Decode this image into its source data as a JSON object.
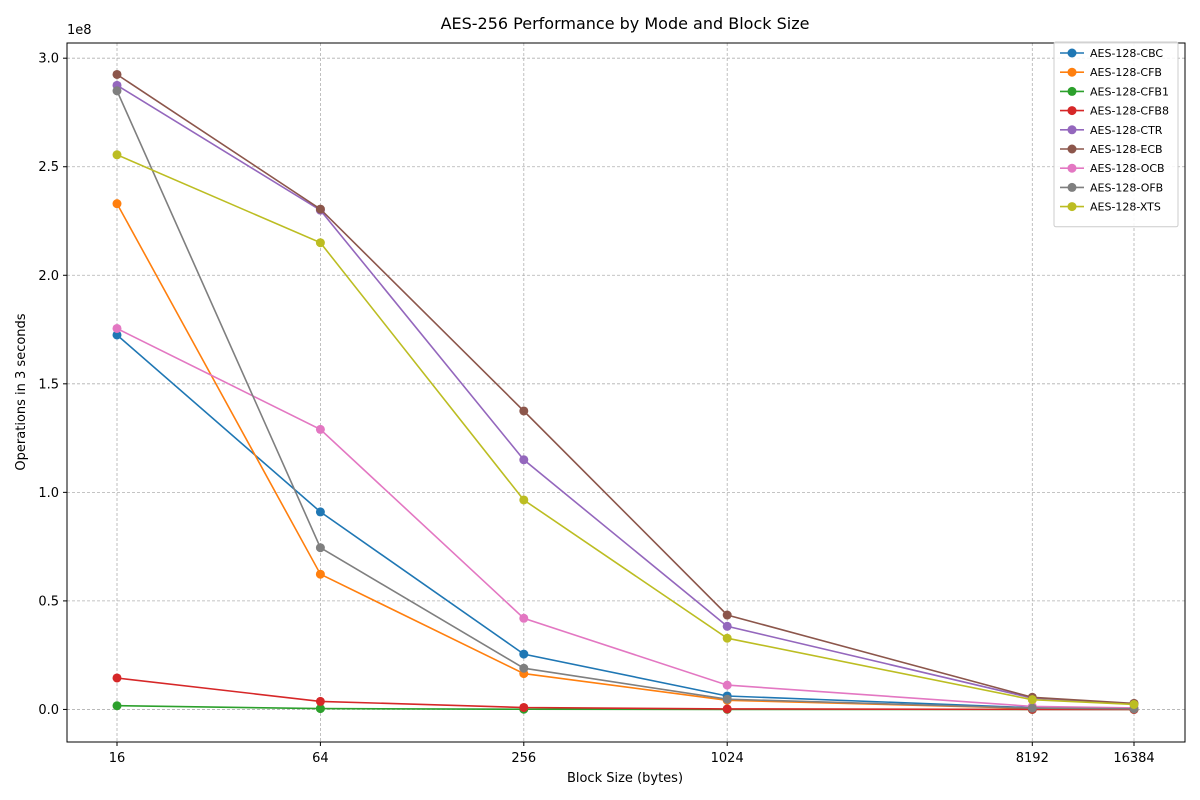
{
  "chart_data": {
    "type": "line",
    "title": "AES-256 Performance by Mode and Block Size",
    "xlabel": "Block Size (bytes)",
    "ylabel": "Operations in 3 seconds",
    "y_offset_text": "1e8",
    "x_scale": "log2",
    "x": [
      16,
      64,
      256,
      1024,
      8192,
      16384
    ],
    "x_tick_labels": [
      "16",
      "64",
      "256",
      "1024",
      "8192",
      "16384"
    ],
    "ylim": [
      -15000000,
      307000000
    ],
    "y_ticks": [
      0,
      50000000,
      100000000,
      150000000,
      200000000,
      250000000,
      300000000
    ],
    "y_tick_labels": [
      "0.0",
      "0.5",
      "1.0",
      "1.5",
      "2.0",
      "2.5",
      "3.0"
    ],
    "grid": true,
    "legend_position": "top-right",
    "series": [
      {
        "name": "AES-128-CBC",
        "color": "#1f77b4",
        "values": [
          172500000,
          91000000,
          25500000,
          6200000,
          800000,
          400000
        ]
      },
      {
        "name": "AES-128-CFB",
        "color": "#ff7f0e",
        "values": [
          233000000,
          62300000,
          16500000,
          4200000,
          500000,
          300000
        ]
      },
      {
        "name": "AES-128-CFB1",
        "color": "#2ca02c",
        "values": [
          1700000,
          400000,
          100000,
          30000,
          5000,
          2000
        ]
      },
      {
        "name": "AES-128-CFB8",
        "color": "#d62728",
        "values": [
          14500000,
          3700000,
          900000,
          230000,
          30000,
          15000
        ]
      },
      {
        "name": "AES-128-CTR",
        "color": "#9467bd",
        "values": [
          287500000,
          230000000,
          115000000,
          38300000,
          5200000,
          2600000
        ]
      },
      {
        "name": "AES-128-ECB",
        "color": "#8c564b",
        "values": [
          292500000,
          230500000,
          137500000,
          43500000,
          5600000,
          2800000
        ]
      },
      {
        "name": "AES-128-OCB",
        "color": "#e377c2",
        "values": [
          175500000,
          129000000,
          42000000,
          11200000,
          1400000,
          700000
        ]
      },
      {
        "name": "AES-128-OFB",
        "color": "#7f7f7f",
        "values": [
          285000000,
          74500000,
          19000000,
          4700000,
          600000,
          300000
        ]
      },
      {
        "name": "AES-128-XTS",
        "color": "#bcbd22",
        "values": [
          255500000,
          215000000,
          96500000,
          32800000,
          4500000,
          2300000
        ]
      }
    ]
  }
}
